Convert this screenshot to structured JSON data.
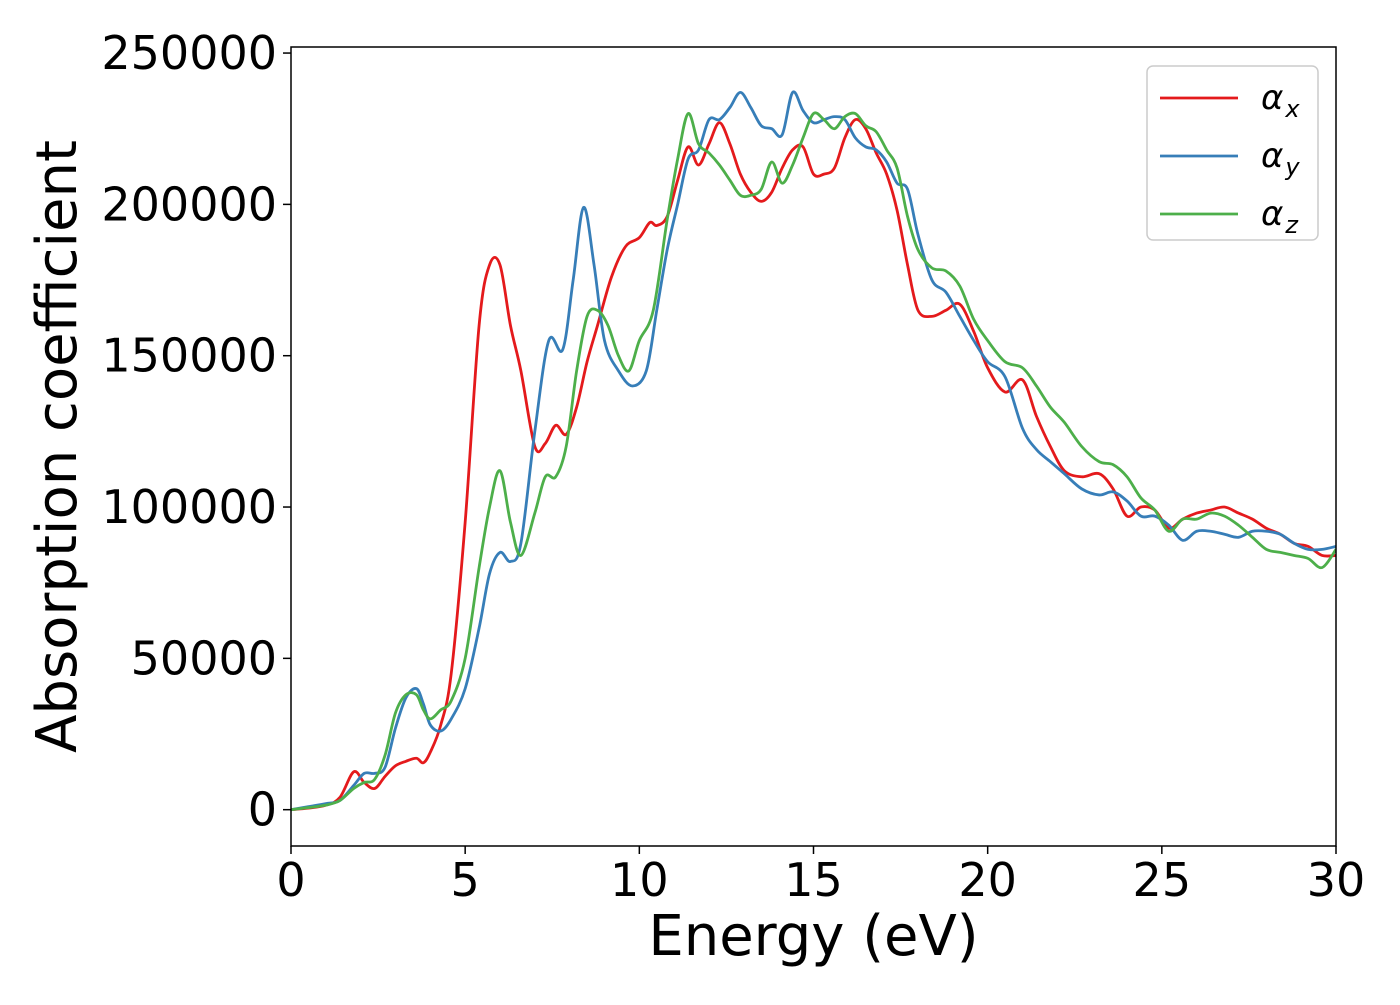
{
  "chart_data": {
    "type": "line",
    "title": "",
    "xlabel": "Energy (eV)",
    "ylabel": "Absorption coefficient",
    "xlim": [
      0,
      30
    ],
    "ylim": [
      -12000,
      252000
    ],
    "xticks": [
      0,
      5,
      10,
      15,
      20,
      25,
      30
    ],
    "xtick_labels": [
      "0",
      "5",
      "10",
      "15",
      "20",
      "25",
      "30"
    ],
    "yticks": [
      0,
      50000,
      100000,
      150000,
      200000,
      250000
    ],
    "ytick_labels": [
      "0",
      "50000",
      "100000",
      "150000",
      "200000",
      "250000"
    ],
    "grid": false,
    "legend_position": "top-right",
    "series": [
      {
        "name": "α_x",
        "label_main": "α",
        "label_sub": "x",
        "color": "#e41a1c",
        "x": [
          0,
          0.5,
          1.0,
          1.4,
          1.8,
          2.1,
          2.4,
          2.7,
          3.0,
          3.3,
          3.6,
          3.8,
          4.0,
          4.3,
          4.6,
          5.0,
          5.4,
          5.7,
          6.0,
          6.3,
          6.6,
          7.0,
          7.3,
          7.6,
          7.9,
          8.2,
          8.5,
          8.8,
          9.2,
          9.6,
          10.0,
          10.3,
          10.5,
          10.8,
          11.1,
          11.4,
          11.7,
          12.0,
          12.3,
          12.6,
          12.9,
          13.2,
          13.5,
          13.8,
          14.1,
          14.4,
          14.7,
          15.0,
          15.3,
          15.6,
          15.9,
          16.2,
          16.5,
          16.8,
          17.1,
          17.4,
          17.7,
          18.0,
          18.4,
          18.8,
          19.2,
          19.6,
          20.0,
          20.5,
          21.0,
          21.4,
          21.8,
          22.2,
          22.7,
          23.2,
          23.6,
          24.0,
          24.4,
          24.8,
          25.2,
          25.6,
          26.0,
          26.4,
          26.8,
          27.2,
          27.6,
          28.0,
          28.4,
          28.8,
          29.2,
          29.6,
          30.0
        ],
        "values": [
          0,
          500,
          1500,
          4000,
          12500,
          9000,
          7000,
          11000,
          14500,
          16000,
          17000,
          15500,
          19000,
          28000,
          45000,
          95000,
          160000,
          180000,
          180000,
          160000,
          145000,
          120000,
          121000,
          127000,
          124000,
          133000,
          148000,
          160000,
          176000,
          186000,
          189000,
          194000,
          193000,
          196000,
          208000,
          219000,
          213000,
          220000,
          227000,
          220000,
          210000,
          204000,
          201000,
          204000,
          212000,
          218000,
          219000,
          210000,
          210000,
          212000,
          222000,
          228000,
          225000,
          217000,
          210000,
          198000,
          180000,
          165000,
          163000,
          165000,
          167000,
          158000,
          146000,
          138000,
          142000,
          130000,
          120000,
          112000,
          110000,
          111000,
          106000,
          97000,
          100000,
          99000,
          93000,
          96000,
          98000,
          99000,
          100000,
          98000,
          96000,
          93000,
          91000,
          88000,
          87000,
          84000,
          84000
        ]
      },
      {
        "name": "α_y",
        "label_main": "α",
        "label_sub": "y",
        "color": "#377eb8",
        "x": [
          0,
          0.5,
          1.0,
          1.4,
          1.8,
          2.1,
          2.4,
          2.7,
          3.0,
          3.3,
          3.6,
          3.8,
          4.0,
          4.3,
          4.6,
          5.0,
          5.4,
          5.7,
          6.0,
          6.3,
          6.6,
          7.0,
          7.4,
          7.8,
          8.1,
          8.4,
          8.7,
          9.0,
          9.4,
          9.8,
          10.2,
          10.5,
          10.8,
          11.1,
          11.4,
          11.7,
          12.0,
          12.3,
          12.6,
          12.9,
          13.2,
          13.5,
          13.8,
          14.1,
          14.4,
          14.7,
          15.0,
          15.3,
          15.6,
          15.9,
          16.2,
          16.5,
          16.8,
          17.1,
          17.4,
          17.7,
          18.0,
          18.4,
          18.8,
          19.2,
          19.6,
          20.0,
          20.5,
          21.0,
          21.4,
          21.8,
          22.2,
          22.7,
          23.2,
          23.6,
          24.0,
          24.4,
          24.8,
          25.2,
          25.6,
          26.0,
          26.4,
          26.8,
          27.2,
          27.6,
          28.0,
          28.4,
          28.8,
          29.2,
          29.6,
          30.0
        ],
        "values": [
          0,
          1000,
          2000,
          3000,
          8000,
          12000,
          12000,
          14000,
          27000,
          37000,
          40000,
          35000,
          28000,
          26000,
          30000,
          40000,
          60000,
          78000,
          85000,
          82000,
          88000,
          125000,
          155000,
          152000,
          175000,
          199000,
          180000,
          155000,
          145000,
          140000,
          145000,
          165000,
          185000,
          200000,
          215000,
          218000,
          228000,
          228000,
          232000,
          237000,
          232000,
          226000,
          225000,
          223000,
          237000,
          231000,
          227000,
          228000,
          229000,
          228000,
          222000,
          219000,
          218000,
          214000,
          207000,
          205000,
          190000,
          175000,
          171000,
          163000,
          155000,
          148000,
          143000,
          126000,
          119000,
          115000,
          111000,
          106000,
          104000,
          105000,
          102000,
          97000,
          97000,
          94000,
          89000,
          92000,
          92000,
          91000,
          90000,
          92000,
          92000,
          91000,
          88000,
          86000,
          86000,
          87000
        ]
      },
      {
        "name": "α_z",
        "label_main": "α",
        "label_sub": "z",
        "color": "#4daf4a",
        "x": [
          0,
          0.5,
          1.0,
          1.4,
          1.8,
          2.1,
          2.4,
          2.7,
          3.0,
          3.3,
          3.6,
          3.8,
          4.0,
          4.3,
          4.6,
          5.0,
          5.4,
          5.7,
          6.0,
          6.3,
          6.6,
          7.0,
          7.3,
          7.6,
          7.9,
          8.2,
          8.5,
          8.8,
          9.1,
          9.4,
          9.7,
          10.0,
          10.4,
          10.8,
          11.1,
          11.4,
          11.7,
          12.0,
          12.3,
          12.6,
          12.9,
          13.2,
          13.5,
          13.8,
          14.1,
          14.4,
          14.7,
          15.0,
          15.3,
          15.6,
          15.9,
          16.2,
          16.5,
          16.8,
          17.1,
          17.4,
          17.7,
          18.0,
          18.4,
          18.8,
          19.2,
          19.6,
          20.0,
          20.5,
          21.0,
          21.4,
          21.8,
          22.2,
          22.7,
          23.2,
          23.6,
          24.0,
          24.4,
          24.8,
          25.2,
          25.6,
          26.0,
          26.4,
          26.8,
          27.2,
          27.6,
          28.0,
          28.4,
          28.8,
          29.2,
          29.6,
          30.0
        ],
        "values": [
          0,
          700,
          1500,
          3000,
          7000,
          9000,
          10000,
          18000,
          32000,
          38000,
          38000,
          33000,
          30000,
          33000,
          36000,
          50000,
          80000,
          100000,
          112000,
          95000,
          84000,
          98000,
          110000,
          110000,
          120000,
          145000,
          163000,
          165000,
          160000,
          150000,
          145000,
          155000,
          165000,
          195000,
          215000,
          230000,
          220000,
          217000,
          213000,
          208000,
          203000,
          203000,
          205000,
          214000,
          207000,
          213000,
          222000,
          230000,
          228000,
          225000,
          229000,
          230000,
          226000,
          224000,
          218000,
          212000,
          196000,
          185000,
          179000,
          178000,
          173000,
          162000,
          155000,
          148000,
          146000,
          140000,
          133000,
          128000,
          120000,
          115000,
          114000,
          110000,
          103000,
          99000,
          92000,
          96000,
          96000,
          98000,
          97000,
          94000,
          90000,
          86000,
          85000,
          84000,
          83000,
          80000,
          86000
        ]
      }
    ]
  }
}
